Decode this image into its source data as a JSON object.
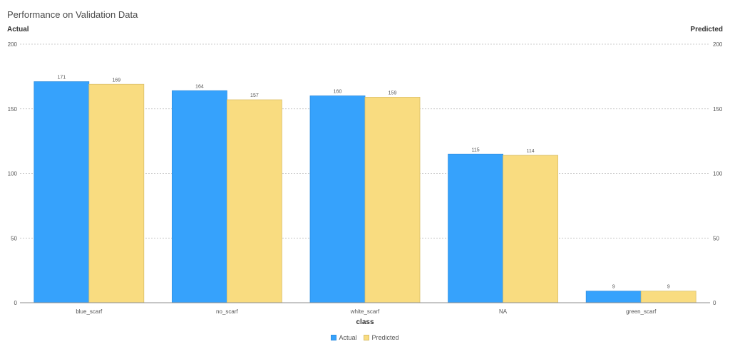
{
  "header": {
    "title": "Performance on Validation Data",
    "left_axis_title": "Actual",
    "right_axis_title": "Predicted"
  },
  "colors": {
    "actual": "#36a2fc",
    "actual_border": "#2f8fe0",
    "predicted": "#f9dc80",
    "predicted_border": "#d9bf6a",
    "grid": "#bdbdbd",
    "axis": "#8c8c8c"
  },
  "chart_data": {
    "type": "bar",
    "title": "Performance on Validation Data",
    "xlabel": "class",
    "ylabel": "Actual",
    "y2label": "Predicted",
    "categories": [
      "blue_scarf",
      "no_scarf",
      "white_scarf",
      "NA",
      "green_scarf"
    ],
    "series": [
      {
        "name": "Actual",
        "values": [
          171,
          164,
          160,
          115,
          9
        ]
      },
      {
        "name": "Predicted",
        "values": [
          169,
          157,
          159,
          114,
          9
        ]
      }
    ],
    "ylim": [
      0,
      200
    ],
    "yticks": [
      0,
      50,
      100,
      150,
      200
    ],
    "grid": true,
    "legend_position": "bottom-center",
    "data_labels": true
  }
}
